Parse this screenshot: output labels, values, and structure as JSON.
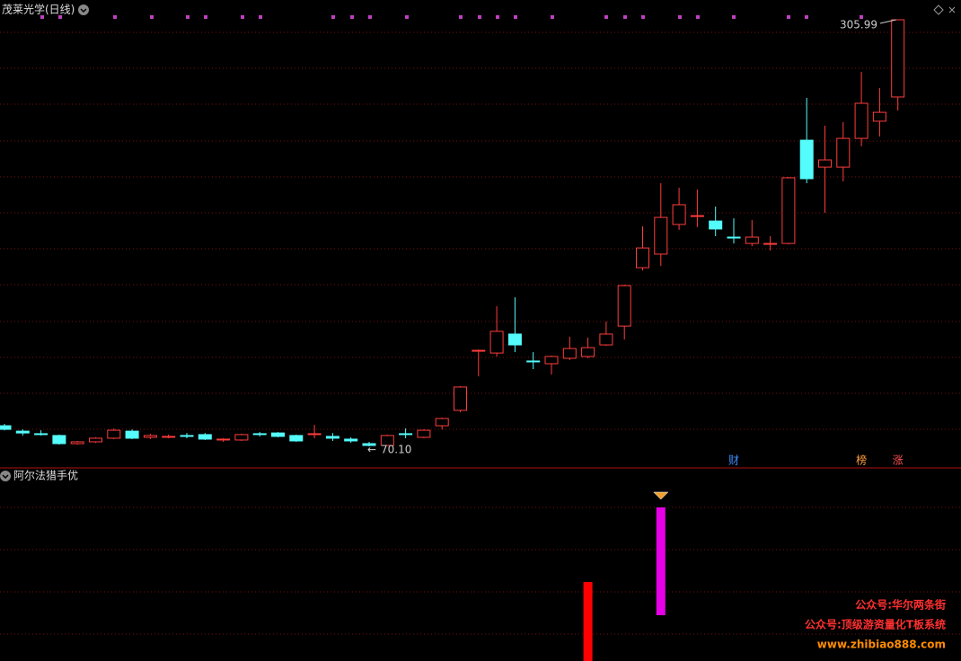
{
  "title": "茂莱光学(日线)",
  "chart_data": [
    {
      "type": "candlestick",
      "open": [
        81.5,
        78.5,
        77.1,
        76.1,
        71.6,
        72.6,
        74.6,
        78.5,
        75.1,
        75.1,
        76.1,
        76.6,
        73.6,
        73.6,
        77.1,
        77.5,
        76.1,
        76.6,
        75.6,
        74.1,
        71.6,
        70.6,
        77.1,
        75.1,
        81.5,
        90.0,
        122.7,
        121.7,
        132.2,
        117.3,
        115.8,
        118.8,
        119.8,
        126.2,
        136.6,
        168.9,
        176.4,
        192.8,
        197.2,
        194.7,
        185.8,
        182.3,
        181.8,
        182.3,
        239.4,
        224.5,
        224.5,
        240.4,
        249.9,
        263.3
      ],
      "high": [
        82.5,
        79.5,
        79.0,
        76.6,
        73.1,
        75.1,
        80.0,
        79.5,
        77.1,
        76.6,
        77.5,
        77.5,
        74.6,
        77.1,
        78.0,
        78.0,
        76.6,
        82.0,
        77.5,
        75.1,
        72.6,
        76.6,
        80.0,
        79.5,
        86.0,
        103.4,
        123.7,
        147.6,
        152.5,
        122.2,
        120.3,
        130.7,
        130.2,
        139.1,
        159.5,
        191.8,
        215.6,
        213.1,
        212.1,
        202.7,
        196.2,
        195.2,
        186.3,
        219.1,
        262.8,
        247.4,
        249.4,
        277.2,
        268.2,
        305.99
      ],
      "low": [
        79.0,
        76.1,
        76.1,
        71.1,
        71.1,
        72.1,
        74.1,
        74.1,
        74.1,
        74.6,
        74.6,
        73.6,
        72.6,
        73.1,
        75.6,
        75.1,
        72.6,
        74.6,
        73.1,
        72.1,
        70.1,
        70.6,
        74.6,
        74.6,
        79.5,
        89.0,
        108.8,
        119.8,
        122.2,
        112.8,
        109.8,
        117.8,
        118.8,
        125.7,
        129.2,
        167.4,
        169.9,
        189.8,
        191.3,
        186.3,
        182.3,
        180.8,
        178.4,
        181.8,
        215.6,
        199.2,
        216.6,
        236.0,
        241.4,
        255.8
      ],
      "close": [
        79.5,
        77.5,
        76.6,
        71.6,
        72.6,
        74.6,
        79.0,
        74.6,
        76.1,
        75.6,
        75.6,
        74.1,
        74.1,
        76.6,
        76.6,
        75.6,
        73.1,
        77.1,
        74.6,
        73.1,
        70.6,
        76.1,
        76.6,
        79.0,
        85.5,
        102.9,
        123.2,
        133.7,
        126.2,
        116.8,
        119.8,
        124.2,
        124.7,
        132.2,
        159.0,
        179.8,
        196.7,
        203.7,
        197.7,
        190.3,
        185.3,
        185.8,
        182.3,
        218.6,
        218.1,
        228.5,
        240.4,
        259.8,
        254.8,
        305.99
      ],
      "up_color": "#ff3c3c",
      "down_color": "#54fcfc",
      "high_label": 305.99,
      "low_label": {
        "value": 70.1,
        "label": "70.10"
      },
      "markers": [
        {
          "index": 40,
          "label": "财",
          "color": "#3c8cff"
        },
        {
          "index": 47,
          "label": "榜",
          "color": "#ffa040"
        },
        {
          "index": 49,
          "label": "涨",
          "color": "#ff5050"
        }
      ]
    },
    {
      "type": "bar",
      "title": "阿尔法猎手优",
      "series": [
        {
          "color": "#ff0000",
          "index": 32,
          "values": [
            0,
            88
          ]
        },
        {
          "color": "#e600e6",
          "index": 36,
          "values": [
            51,
            171
          ]
        }
      ]
    }
  ],
  "watermark": [
    "公众号:华尔两条街",
    "公众号:顶级游资量化T板系统",
    "www.zhibiao888.com"
  ]
}
